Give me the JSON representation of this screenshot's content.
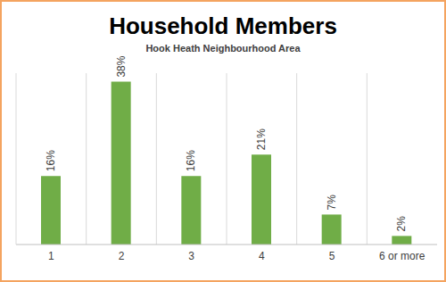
{
  "chart_data": {
    "type": "bar",
    "title": "Household Members",
    "subtitle": "Hook Heath Neighbourhood Area",
    "categories": [
      "1",
      "2",
      "3",
      "4",
      "5",
      "6 or more"
    ],
    "values": [
      16,
      38,
      16,
      21,
      7,
      2
    ],
    "value_labels": [
      "16%",
      "38%",
      "16%",
      "21%",
      "7%",
      "2%"
    ],
    "color": "#70ad47",
    "ylim": [
      0,
      40
    ],
    "grid": true,
    "data_labels": true,
    "tick_labels": "x"
  }
}
